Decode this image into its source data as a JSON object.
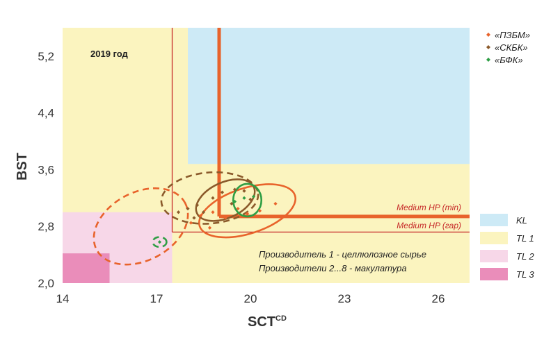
{
  "chart_data": {
    "type": "scatter",
    "xlabel": "SCT",
    "xlabel_sup": "CD",
    "ylabel": "BST",
    "xlim": [
      14,
      27
    ],
    "ylim": [
      2.0,
      5.6
    ],
    "xticks": [
      14,
      17,
      20,
      23,
      26
    ],
    "yticks": [
      2.0,
      2.8,
      3.6,
      4.4,
      5.2
    ],
    "ytick_labels": [
      "2,0",
      "2,8",
      "3,6",
      "4,4",
      "5,2"
    ],
    "year_label": "2019 год",
    "zones": [
      {
        "name": "KL",
        "color": "#cdeaf6",
        "x": [
          18,
          27
        ],
        "y": [
          3.68,
          5.6
        ]
      },
      {
        "name": "TL 1",
        "color": "#fbf4bf",
        "x": [
          14,
          27
        ],
        "y": [
          2.0,
          5.6
        ]
      },
      {
        "name": "TL 2",
        "color": "#f7d7e8",
        "x": [
          14,
          17.5
        ],
        "y": [
          2.0,
          3.0
        ]
      },
      {
        "name": "TL 3",
        "color": "#ea8dba",
        "x": [
          14,
          15.5
        ],
        "y": [
          2.0,
          2.42
        ]
      }
    ],
    "thresholds": [
      {
        "label": "Medium HP (min)",
        "x": 19.0,
        "y": 2.94,
        "color": "#e8632b",
        "width": 5
      },
      {
        "label": "Medium HP (гар)",
        "x": 17.5,
        "y": 2.72,
        "color": "#c62828",
        "width": 1.3
      }
    ],
    "series": [
      {
        "name": "«ПЗБМ»",
        "color": "#e8632b",
        "points": [
          [
            18.1,
            2.85
          ],
          [
            18.4,
            2.95
          ],
          [
            18.8,
            3.0
          ],
          [
            19.2,
            2.92
          ],
          [
            19.6,
            3.05
          ],
          [
            19.9,
            2.98
          ],
          [
            20.3,
            3.02
          ],
          [
            20.8,
            3.12
          ],
          [
            19.0,
            3.1
          ],
          [
            18.7,
            2.78
          ]
        ]
      },
      {
        "name": "«СКБК»",
        "color": "#8b5a2b",
        "points": [
          [
            17.7,
            3.0
          ],
          [
            18.0,
            3.05
          ],
          [
            18.3,
            3.1
          ],
          [
            18.5,
            3.0
          ],
          [
            18.8,
            3.2
          ],
          [
            19.1,
            3.28
          ],
          [
            19.5,
            3.32
          ],
          [
            19.8,
            3.3
          ],
          [
            19.4,
            3.12
          ],
          [
            20.0,
            3.18
          ],
          [
            18.2,
            2.92
          ]
        ]
      },
      {
        "name": "«БФК»",
        "color": "#2e9e44",
        "points": [
          [
            19.5,
            3.15
          ],
          [
            19.8,
            3.2
          ],
          [
            20.1,
            3.22
          ],
          [
            17.1,
            2.58
          ]
        ]
      }
    ],
    "ellipses": [
      {
        "series": "«ПЗБМ»",
        "cx": 16.5,
        "cy": 2.8,
        "rx": 1.6,
        "ry": 0.48,
        "angle": -28,
        "dashed": true
      },
      {
        "series": "«ПЗБМ»",
        "cx": 19.9,
        "cy": 3.02,
        "rx": 1.6,
        "ry": 0.32,
        "angle": -18,
        "dashed": false
      },
      {
        "series": "«СКБК»",
        "cx": 18.7,
        "cy": 3.2,
        "rx": 1.55,
        "ry": 0.36,
        "angle": -5,
        "dashed": true
      },
      {
        "series": "«СКБК»",
        "cx": 19.2,
        "cy": 3.17,
        "rx": 1.0,
        "ry": 0.25,
        "angle": -25,
        "dashed": false
      },
      {
        "series": "«БФК»",
        "cx": 19.9,
        "cy": 3.17,
        "rx": 0.45,
        "ry": 0.23,
        "angle": 0,
        "dashed": false
      },
      {
        "series": "«БФК»",
        "cx": 17.1,
        "cy": 2.58,
        "rx": 0.22,
        "ry": 0.07,
        "angle": 0,
        "dashed": true
      }
    ],
    "annotations": [
      "Производитель 1 - целлюлозное сырье",
      "Производители 2...8 - макулатура"
    ],
    "legend_placement": "right"
  }
}
